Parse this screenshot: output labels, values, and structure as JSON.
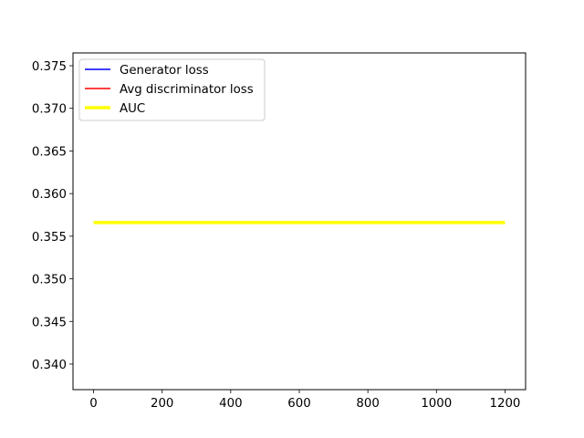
{
  "chart_data": {
    "type": "line",
    "title": "",
    "xlabel": "",
    "ylabel": "",
    "xlim": [
      -60,
      1260
    ],
    "ylim": [
      0.337,
      0.3765
    ],
    "x_ticks": [
      0,
      200,
      400,
      600,
      800,
      1000,
      1200
    ],
    "y_ticks": [
      0.34,
      0.345,
      0.35,
      0.355,
      0.36,
      0.365,
      0.37,
      0.375
    ],
    "x_tick_labels": [
      "0",
      "200",
      "400",
      "600",
      "800",
      "1000",
      "1200"
    ],
    "y_tick_labels": [
      "0.340",
      "0.345",
      "0.350",
      "0.355",
      "0.360",
      "0.365",
      "0.370",
      "0.375"
    ],
    "grid": false,
    "legend_position": "upper-left",
    "series": [
      {
        "name": "Generator loss",
        "color": "#0000ff",
        "x": [],
        "y": []
      },
      {
        "name": "Avg discriminator loss",
        "color": "#ff0000",
        "x": [],
        "y": []
      },
      {
        "name": "AUC",
        "color": "#ffff00",
        "x": [
          0,
          1200
        ],
        "y": [
          0.3566,
          0.3566
        ]
      }
    ]
  }
}
